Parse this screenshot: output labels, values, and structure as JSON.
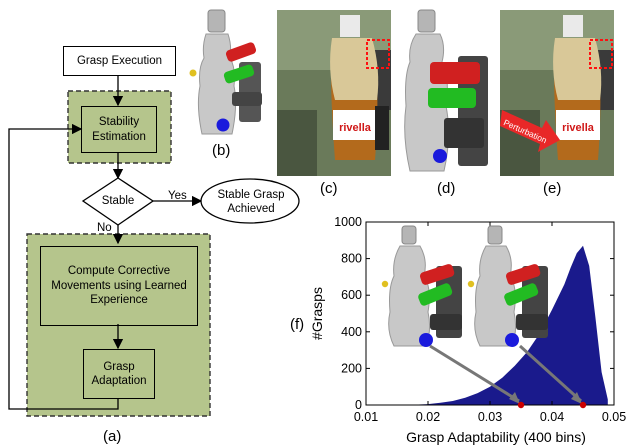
{
  "flowchart": {
    "grasp_execution": "Grasp Execution",
    "stability_estimation": "Stability Estimation",
    "stable": "Stable",
    "yes": "Yes",
    "no": "No",
    "stable_grasp_achieved": "Stable Grasp Achieved",
    "corrective": "Compute Corrective Movements using Learned Experience",
    "grasp_adaptation": "Grasp Adaptation",
    "label": "(a)",
    "colors": {
      "panel_fill": "#b5c58c",
      "panel_border": "#333333"
    }
  },
  "panels": {
    "b": "(b)",
    "c": "(c)",
    "d": "(d)",
    "e": "(e)",
    "f": "(f)",
    "perturbation": "Perturbation",
    "bottle_brand": "rivella"
  },
  "chart_data": {
    "type": "bar",
    "xlabel": "Grasp Adaptability (400 bins)",
    "ylabel": "#Grasps",
    "xlim": [
      0.01,
      0.05
    ],
    "ylim": [
      0,
      1000
    ],
    "x_ticks": [
      "0.01",
      "0.02",
      "0.03",
      "0.04",
      "0.05"
    ],
    "y_ticks": [
      "0",
      "200",
      "400",
      "600",
      "800",
      "1000"
    ],
    "distribution": {
      "x": [
        0.018,
        0.02,
        0.022,
        0.024,
        0.026,
        0.028,
        0.03,
        0.032,
        0.034,
        0.036,
        0.038,
        0.04,
        0.042,
        0.043,
        0.044,
        0.045,
        0.046,
        0.047,
        0.048,
        0.049
      ],
      "y": [
        2,
        5,
        12,
        22,
        40,
        65,
        100,
        150,
        215,
        290,
        390,
        520,
        660,
        750,
        830,
        870,
        760,
        480,
        180,
        30
      ]
    },
    "highlighted_points": [
      0.035,
      0.045
    ],
    "bar_color": "#1a1a8c",
    "point_color": "#cc0000"
  }
}
